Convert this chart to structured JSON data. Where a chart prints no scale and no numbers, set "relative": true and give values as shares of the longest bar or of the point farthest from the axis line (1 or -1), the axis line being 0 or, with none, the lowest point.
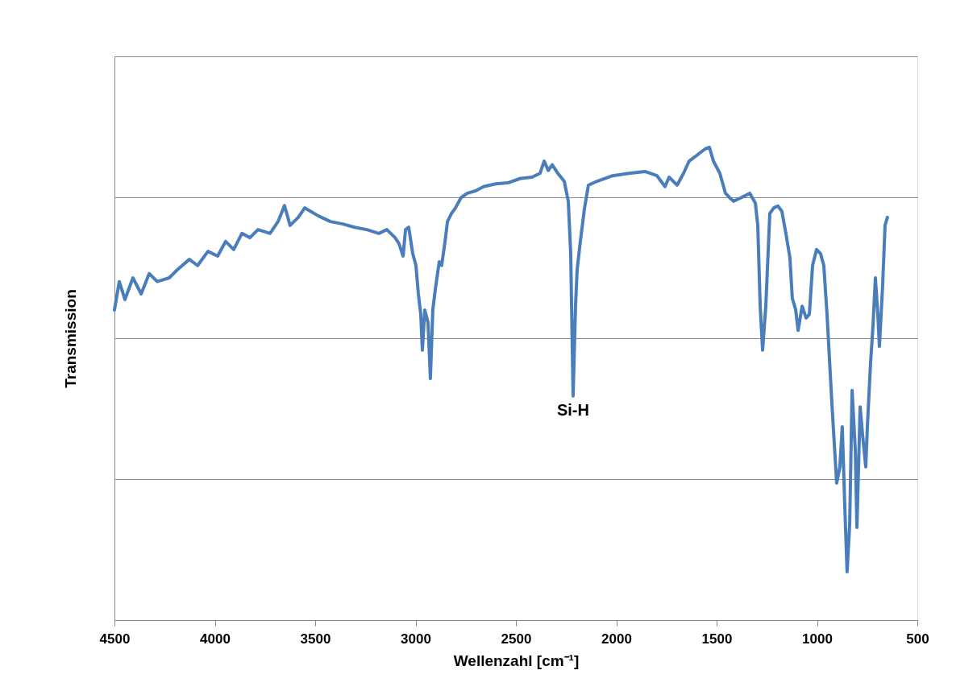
{
  "chart_data": {
    "type": "line",
    "relative": true,
    "xlabel": "Wellenzahl [cm⁻¹]",
    "ylabel": "Transmission",
    "xlim": [
      4500,
      500
    ],
    "xticks": [
      4500,
      4000,
      3500,
      3000,
      2500,
      2000,
      1500,
      1000,
      500
    ],
    "grid": "y",
    "marker": "none",
    "line_style": "solid",
    "annotations": [
      {
        "text": "Si-H",
        "x": 2215,
        "y": 0.474
      }
    ],
    "series": [
      {
        "color": "#4a7ebb",
        "x": [
          4500,
          4476,
          4448,
          4408,
          4367,
          4327,
          4287,
          4227,
          4187,
          4127,
          4086,
          4034,
          3986,
          3946,
          3906,
          3865,
          3825,
          3785,
          3725,
          3685,
          3653,
          3625,
          3584,
          3552,
          3524,
          3484,
          3424,
          3363,
          3303,
          3243,
          3183,
          3143,
          3102,
          3082,
          3062,
          3050,
          3034,
          3014,
          2998,
          2986,
          2974,
          2966,
          2954,
          2938,
          2926,
          2914,
          2902,
          2882,
          2870,
          2853,
          2841,
          2821,
          2801,
          2773,
          2741,
          2701,
          2661,
          2600,
          2540,
          2480,
          2420,
          2380,
          2359,
          2339,
          2319,
          2291,
          2259,
          2239,
          2227,
          2215,
          2203,
          2195,
          2179,
          2159,
          2139,
          2098,
          2018,
          1938,
          1857,
          1797,
          1757,
          1737,
          1697,
          1665,
          1637,
          1608,
          1584,
          1556,
          1536,
          1516,
          1484,
          1456,
          1436,
          1416,
          1376,
          1335,
          1307,
          1295,
          1283,
          1271,
          1255,
          1235,
          1215,
          1195,
          1175,
          1155,
          1135,
          1123,
          1106,
          1094,
          1074,
          1054,
          1038,
          1022,
          1002,
          982,
          966,
          950,
          926,
          902,
          886,
          874,
          862,
          850,
          837,
          825,
          809,
          801,
          785,
          773,
          757,
          749,
          733,
          721,
          709,
          697,
          689,
          673,
          661,
          649
        ],
        "values": [
          0.656,
          0.716,
          0.678,
          0.724,
          0.69,
          0.733,
          0.716,
          0.724,
          0.741,
          0.763,
          0.75,
          0.78,
          0.77,
          0.801,
          0.784,
          0.818,
          0.809,
          0.826,
          0.818,
          0.843,
          0.877,
          0.835,
          0.852,
          0.872,
          0.865,
          0.855,
          0.843,
          0.838,
          0.831,
          0.826,
          0.818,
          0.826,
          0.809,
          0.796,
          0.77,
          0.826,
          0.831,
          0.775,
          0.75,
          0.69,
          0.647,
          0.571,
          0.656,
          0.63,
          0.511,
          0.656,
          0.698,
          0.758,
          0.75,
          0.801,
          0.843,
          0.86,
          0.872,
          0.894,
          0.903,
          0.908,
          0.917,
          0.923,
          0.925,
          0.934,
          0.937,
          0.945,
          0.971,
          0.951,
          0.963,
          0.945,
          0.928,
          0.886,
          0.775,
          0.474,
          0.664,
          0.741,
          0.801,
          0.869,
          0.92,
          0.928,
          0.94,
          0.945,
          0.949,
          0.94,
          0.917,
          0.937,
          0.92,
          0.945,
          0.971,
          0.98,
          0.988,
          0.997,
          1.0,
          0.971,
          0.945,
          0.903,
          0.894,
          0.886,
          0.894,
          0.903,
          0.882,
          0.835,
          0.664,
          0.571,
          0.664,
          0.86,
          0.872,
          0.876,
          0.865,
          0.818,
          0.767,
          0.681,
          0.656,
          0.613,
          0.664,
          0.639,
          0.647,
          0.75,
          0.784,
          0.775,
          0.75,
          0.647,
          0.46,
          0.29,
          0.324,
          0.409,
          0.247,
          0.102,
          0.204,
          0.486,
          0.358,
          0.196,
          0.451,
          0.392,
          0.324,
          0.409,
          0.545,
          0.622,
          0.724,
          0.647,
          0.579,
          0.707,
          0.835,
          0.852
        ]
      }
    ]
  }
}
